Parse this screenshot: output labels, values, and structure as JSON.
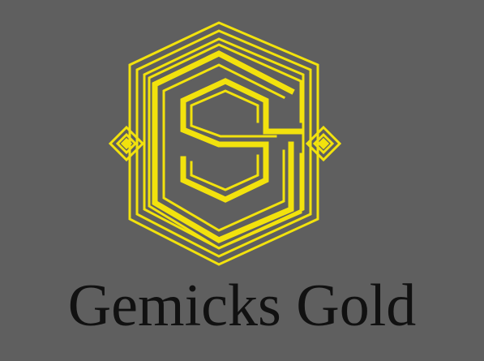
{
  "brand": {
    "name": "Gemicks Gold"
  },
  "colors": {
    "background": "#5f5f5f",
    "gold": "#f2e20d",
    "text": "#111111"
  },
  "logo": {
    "emblem": "hexagon-s-monogram-icon",
    "ornaments": "diamond-ornament-icon"
  }
}
